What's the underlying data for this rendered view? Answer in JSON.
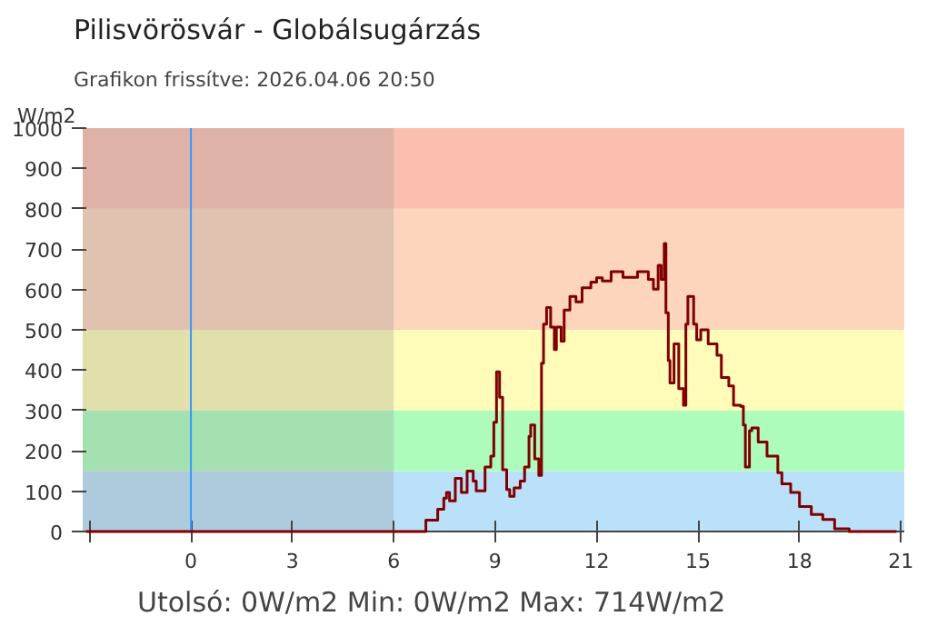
{
  "chart_data": {
    "type": "step",
    "title": "Pilisvörösvár - Globálsugárzás",
    "subtitle": "Grafikon frissítve: 2026.04.06 20:50",
    "ylabel": "W/m2",
    "annotations": [
      "Utolsó: 0W/m2   Min: 0W/m2   Max: 714W/m2"
    ],
    "xlim": [
      -3.2,
      21.1
    ],
    "ylim": [
      0,
      1000
    ],
    "xticks": [
      {
        "value": -3,
        "label": null
      },
      0,
      3,
      6,
      9,
      12,
      15,
      18,
      21
    ],
    "yticks": [
      0,
      100,
      200,
      300,
      400,
      500,
      600,
      700,
      800,
      900,
      1000
    ],
    "bands": [
      {
        "axis": "y",
        "from": 0,
        "to": 150,
        "color": "#bae0fa"
      },
      {
        "axis": "y",
        "from": 150,
        "to": 300,
        "color": "#adfcbc"
      },
      {
        "axis": "y",
        "from": 300,
        "to": 500,
        "color": "#fefcb8"
      },
      {
        "axis": "y",
        "from": 500,
        "to": 800,
        "color": "#fdd5bc"
      },
      {
        "axis": "y",
        "from": 800,
        "to": 1000,
        "color": "#fbbfb0"
      },
      {
        "axis": "x",
        "from": -3.2,
        "to": 6,
        "color": "#8c8c8c"
      }
    ],
    "ref_lines": [
      {
        "axis": "x",
        "value": 0,
        "color": "#3399ff"
      }
    ],
    "series": [
      {
        "color": "#800000",
        "x": [
          -3.1,
          6.0,
          6.26,
          6.95,
          7.3,
          7.48,
          7.56,
          7.65,
          7.82,
          8.0,
          8.17,
          8.35,
          8.44,
          8.61,
          8.7,
          8.87,
          8.96,
          9.04,
          9.13,
          9.22,
          9.34,
          9.43,
          9.56,
          9.74,
          9.87,
          10.0,
          10.05,
          10.17,
          10.29,
          10.37,
          10.43,
          10.52,
          10.64,
          10.75,
          10.81,
          10.95,
          11.04,
          11.21,
          11.39,
          11.57,
          11.83,
          12.0,
          12.17,
          12.43,
          12.78,
          13.21,
          13.53,
          13.68,
          13.82,
          13.91,
          14.0,
          14.05,
          14.12,
          14.17,
          14.29,
          14.43,
          14.57,
          14.64,
          14.7,
          14.87,
          14.96,
          15.08,
          15.3,
          15.56,
          15.69,
          15.91,
          16.05,
          16.26,
          16.34,
          16.4,
          16.52,
          16.59,
          16.78,
          17.04,
          17.36,
          17.48,
          17.74,
          18.0,
          18.35,
          18.69,
          19.04,
          19.47,
          20.87
        ],
        "values": [
          0,
          0,
          0,
          28,
          55,
          83,
          97,
          76,
          132,
          97,
          150,
          125,
          101,
          101,
          160,
          187,
          271,
          396,
          333,
          153,
          104,
          87,
          108,
          125,
          160,
          236,
          264,
          180,
          139,
          417,
          514,
          555,
          507,
          451,
          507,
          472,
          549,
          583,
          569,
          604,
          618,
          629,
          621,
          644,
          630,
          644,
          625,
          601,
          660,
          625,
          714,
          542,
          424,
          368,
          465,
          354,
          313,
          514,
          583,
          514,
          475,
          500,
          465,
          437,
          382,
          361,
          313,
          310,
          264,
          160,
          250,
          257,
          222,
          187,
          146,
          118,
          97,
          62,
          42,
          30,
          7,
          0,
          0
        ]
      }
    ]
  }
}
